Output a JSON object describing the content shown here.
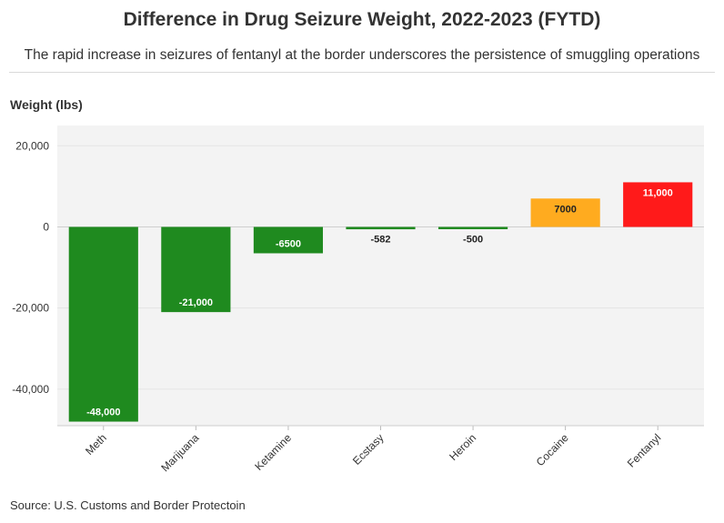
{
  "header": {
    "title": "Difference in Drug Seizure Weight, 2022-2023 (FYTD)",
    "subtitle": "The rapid increase in seizures of fentanyl at the border underscores the persistence of smuggling operations"
  },
  "footer": {
    "source": "Source: U.S. Customs and Border Protectoin"
  },
  "chart_data": {
    "type": "bar",
    "title": "Difference in Drug Seizure Weight, 2022-2023 (FYTD)",
    "subtitle": "The rapid increase in seizures of fentanyl at the border underscores the persistence of smuggling operations",
    "xlabel": "",
    "ylabel": "Weight (lbs)",
    "ylim": [
      -49000,
      25000
    ],
    "yticks": [
      20000,
      0,
      -20000,
      -40000
    ],
    "ytick_labels": [
      "20,000",
      "0",
      "-20,000",
      "-40,000"
    ],
    "grid": true,
    "categories": [
      "Meth",
      "Marijuana",
      "Ketamine",
      "Ecstasy",
      "Heroin",
      "Cocaine",
      "Fentanyl"
    ],
    "values": [
      -48000,
      -21000,
      -6500,
      -582,
      -500,
      7000,
      11000
    ],
    "data_labels": [
      "-48,000",
      "-21,000",
      "-6500",
      "-582",
      "-500",
      "7000",
      "11,000"
    ],
    "colors": [
      "#1f8a1f",
      "#1f8a1f",
      "#1f8a1f",
      "#1f8a1f",
      "#1f8a1f",
      "#ffab1f",
      "#ff1a1a"
    ]
  }
}
